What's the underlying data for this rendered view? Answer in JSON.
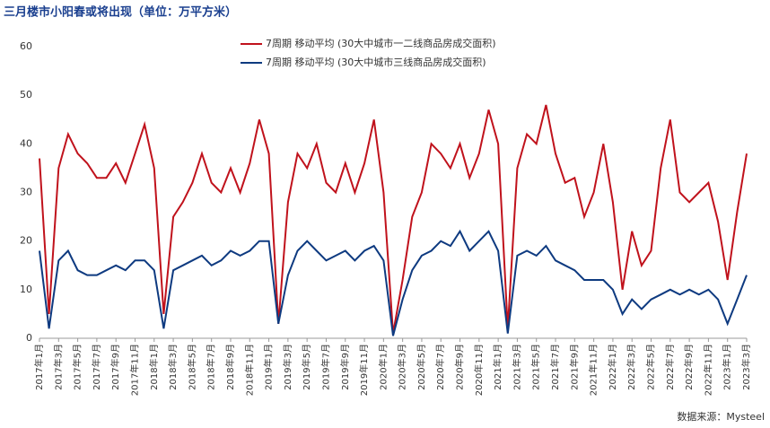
{
  "chart_data": {
    "type": "line",
    "title": "三月楼市小阳春或将出现（单位：万平方米）",
    "source": "数据来源：Mysteel",
    "categories": [
      "2017年1月",
      null,
      "2017年3月",
      null,
      "2017年5月",
      null,
      "2017年7月",
      null,
      "2017年9月",
      null,
      "2017年11月",
      null,
      "2018年1月",
      null,
      "2018年3月",
      null,
      "2018年5月",
      null,
      "2018年7月",
      null,
      "2018年9月",
      null,
      "2018年11月",
      null,
      "2019年1月",
      null,
      "2019年3月",
      null,
      "2019年5月",
      null,
      "2019年7月",
      null,
      "2019年9月",
      null,
      "2019年11月",
      null,
      "2020年1月",
      null,
      "2020年3月",
      null,
      "2020年5月",
      null,
      "2020年7月",
      null,
      "2020年9月",
      null,
      "2020年11月",
      null,
      "2021年1月",
      null,
      "2021年3月",
      null,
      "2021年5月",
      null,
      "2021年7月",
      null,
      "2021年9月",
      null,
      "2021年11月",
      null,
      "2022年1月",
      null,
      "2022年3月",
      null,
      "2022年5月",
      null,
      "2022年7月",
      null,
      "2022年9月",
      null,
      "2022年11月",
      null,
      "2023年1月",
      null,
      "2023年3月"
    ],
    "series": [
      {
        "name": "7周期 移动平均 (30大中城市一二线商品房成交面积)",
        "color": "#c0121c",
        "values": [
          37,
          5,
          35,
          42,
          38,
          36,
          33,
          33,
          36,
          32,
          38,
          44,
          35,
          5,
          25,
          28,
          32,
          38,
          32,
          30,
          35,
          30,
          36,
          45,
          38,
          3,
          28,
          38,
          35,
          40,
          32,
          30,
          36,
          30,
          36,
          45,
          30,
          1,
          12,
          25,
          30,
          40,
          38,
          35,
          40,
          33,
          38,
          47,
          40,
          2,
          35,
          42,
          40,
          48,
          38,
          32,
          33,
          25,
          30,
          40,
          28,
          10,
          22,
          15,
          18,
          35,
          45,
          30,
          28,
          30,
          32,
          24,
          12,
          26,
          38
        ]
      },
      {
        "name": "7周期 移动平均 (30大中城市三线商品房成交面积)",
        "color": "#0e3a80",
        "values": [
          18,
          2,
          16,
          18,
          14,
          13,
          13,
          14,
          15,
          14,
          16,
          16,
          14,
          2,
          14,
          15,
          16,
          17,
          15,
          16,
          18,
          17,
          18,
          20,
          20,
          3,
          13,
          18,
          20,
          18,
          16,
          17,
          18,
          16,
          18,
          19,
          16,
          0.5,
          8,
          14,
          17,
          18,
          20,
          19,
          22,
          18,
          20,
          22,
          18,
          1,
          17,
          18,
          17,
          19,
          16,
          15,
          14,
          12,
          12,
          12,
          10,
          5,
          8,
          6,
          8,
          9,
          10,
          9,
          10,
          9,
          10,
          8,
          3,
          8,
          13
        ]
      }
    ],
    "ylim": [
      0,
      60
    ],
    "yticks": [
      0,
      10,
      20,
      30,
      40,
      50,
      60
    ],
    "grid": false
  }
}
